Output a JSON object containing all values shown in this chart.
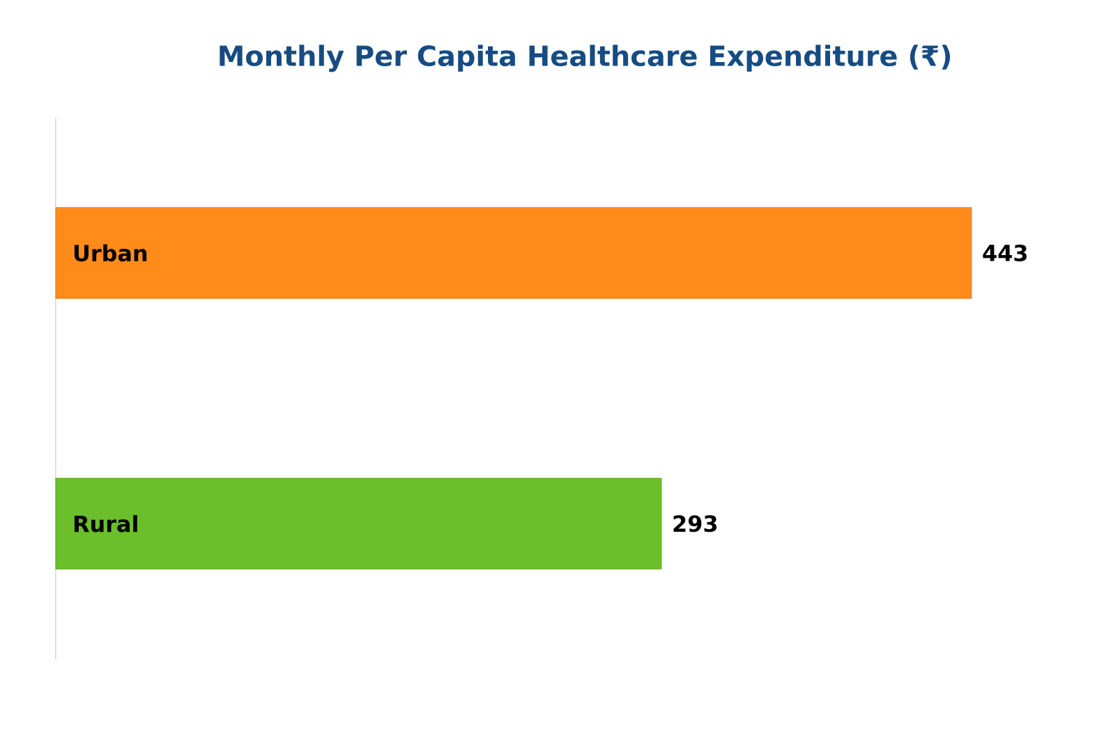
{
  "chart_data": {
    "type": "bar",
    "orientation": "horizontal",
    "title": "Monthly Per Capita Healthcare Expenditure (₹)",
    "categories": [
      "Urban",
      "Rural"
    ],
    "values": [
      443,
      293
    ],
    "colors": [
      "#ff8c1a",
      "#6abf2a"
    ],
    "data_labels": true
  }
}
